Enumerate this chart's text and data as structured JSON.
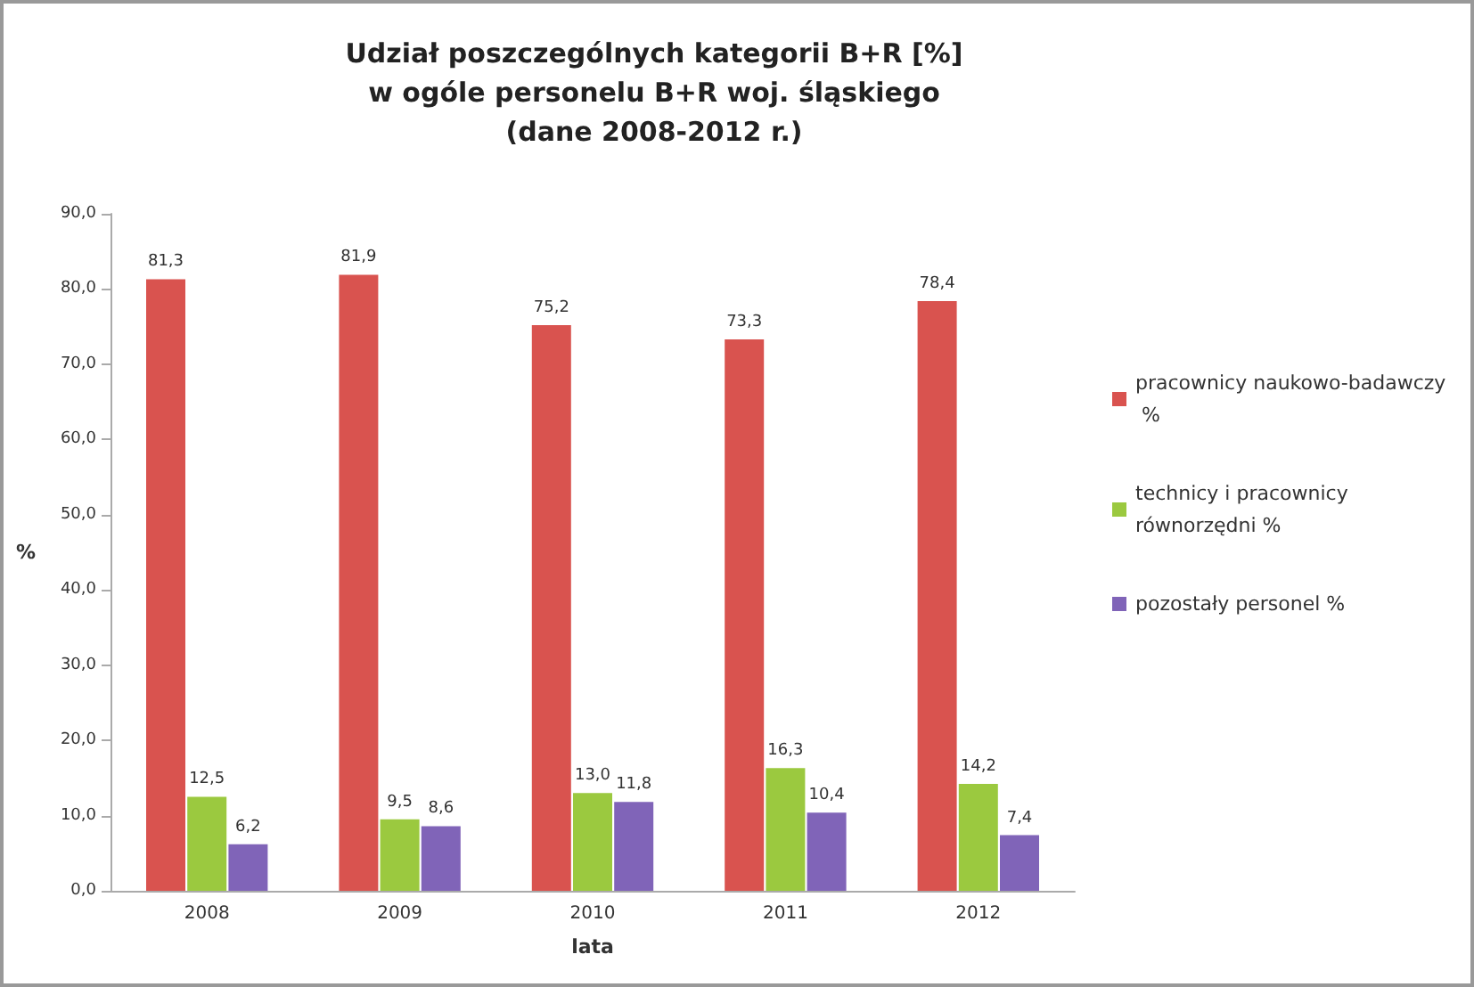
{
  "chart_data": {
    "type": "bar",
    "title": "Udział poszczególnych kategorii B+R [%]\nw ogóle personelu B+R woj. śląskiego\n(dane 2008-2012 r.)",
    "xlabel": "lata",
    "ylabel": "%",
    "categories": [
      "2008",
      "2009",
      "2010",
      "2011",
      "2012"
    ],
    "series": [
      {
        "name": "pracownicy naukowo-badawczy %",
        "color": "#d9534f",
        "values": [
          81.3,
          81.9,
          75.2,
          73.3,
          78.4
        ],
        "value_labels": [
          "81,3",
          "81,9",
          "75,2",
          "73,3",
          "78,4"
        ]
      },
      {
        "name": "technicy i pracownicy równorzędni %",
        "color": "#9bc93f",
        "values": [
          12.5,
          9.5,
          13.0,
          16.3,
          14.2
        ],
        "value_labels": [
          "12,5",
          "9,5",
          "13,0",
          "16,3",
          "14,2"
        ]
      },
      {
        "name": "pozostały personel %",
        "color": "#8064b8",
        "values": [
          6.2,
          8.6,
          11.8,
          10.4,
          7.4
        ],
        "value_labels": [
          "6,2",
          "8,6",
          "11,8",
          "10,4",
          "7,4"
        ]
      }
    ],
    "ylim": [
      0,
      90
    ],
    "yticks": [
      {
        "value": 0,
        "label": "0,0"
      },
      {
        "value": 10,
        "label": "10,0"
      },
      {
        "value": 20,
        "label": "20,0"
      },
      {
        "value": 30,
        "label": "30,0"
      },
      {
        "value": 40,
        "label": "40,0"
      },
      {
        "value": 50,
        "label": "50,0"
      },
      {
        "value": 60,
        "label": "60,0"
      },
      {
        "value": 70,
        "label": "70,0"
      },
      {
        "value": 80,
        "label": "80,0"
      },
      {
        "value": 90,
        "label": "90,0"
      }
    ],
    "grid": false,
    "legend": "right"
  }
}
